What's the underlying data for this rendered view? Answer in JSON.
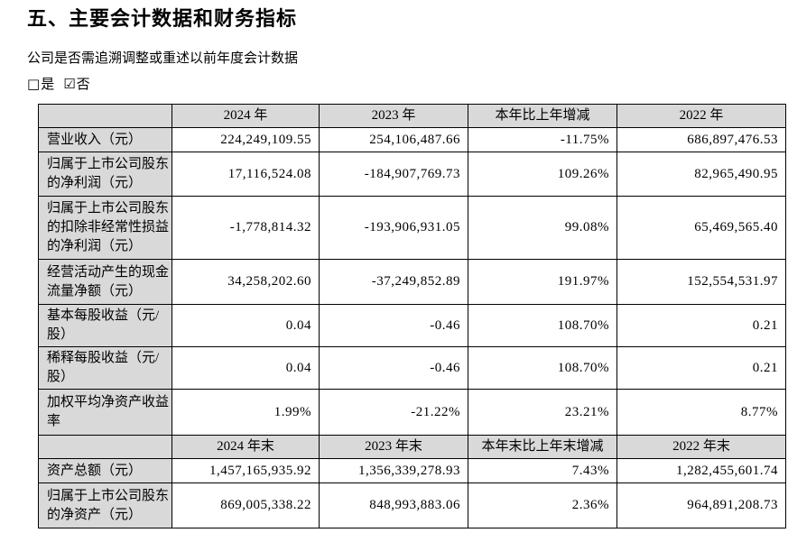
{
  "page": {
    "title": "五、主要会计数据和财务指标",
    "question": "公司是否需追溯调整或重述以前年度会计数据",
    "options": [
      {
        "symbol": "□",
        "label": "是",
        "checked": false
      },
      {
        "symbol": "☑",
        "label": "否",
        "checked": true
      }
    ]
  },
  "colors": {
    "header_bg": "#d9d9d9",
    "border": "#000000",
    "text": "#000000"
  },
  "table": {
    "sections": [
      {
        "headers": [
          "",
          "2024 年",
          "2023 年",
          "本年比上年增减",
          "2022 年"
        ],
        "rows": [
          {
            "label": "营业收入（元）",
            "values": [
              "224,249,109.55",
              "254,106,487.66",
              "-11.75%",
              "686,897,476.53"
            ]
          },
          {
            "label": "归属于上市公司股东的净利润（元）",
            "values": [
              "17,116,524.08",
              "-184,907,769.73",
              "109.26%",
              "82,965,490.95"
            ]
          },
          {
            "label": "归属于上市公司股东的扣除非经常性损益的净利润（元）",
            "values": [
              "-1,778,814.32",
              "-193,906,931.05",
              "99.08%",
              "65,469,565.40"
            ]
          },
          {
            "label": "经营活动产生的现金流量净额（元）",
            "values": [
              "34,258,202.60",
              "-37,249,852.89",
              "191.97%",
              "152,554,531.97"
            ]
          },
          {
            "label": "基本每股收益（元/股）",
            "values": [
              "0.04",
              "-0.46",
              "108.70%",
              "0.21"
            ]
          },
          {
            "label": "稀释每股收益（元/股）",
            "values": [
              "0.04",
              "-0.46",
              "108.70%",
              "0.21"
            ]
          },
          {
            "label": "加权平均净资产收益率",
            "values": [
              "1.99%",
              "-21.22%",
              "23.21%",
              "8.77%"
            ]
          }
        ]
      },
      {
        "headers": [
          "",
          "2024 年末",
          "2023 年末",
          "本年末比上年末增减",
          "2022 年末"
        ],
        "rows": [
          {
            "label": "资产总额（元）",
            "values": [
              "1,457,165,935.92",
              "1,356,339,278.93",
              "7.43%",
              "1,282,455,601.74"
            ]
          },
          {
            "label": "归属于上市公司股东的净资产（元）",
            "values": [
              "869,005,338.22",
              "848,993,883.06",
              "2.36%",
              "964,891,208.73"
            ]
          }
        ]
      }
    ]
  }
}
